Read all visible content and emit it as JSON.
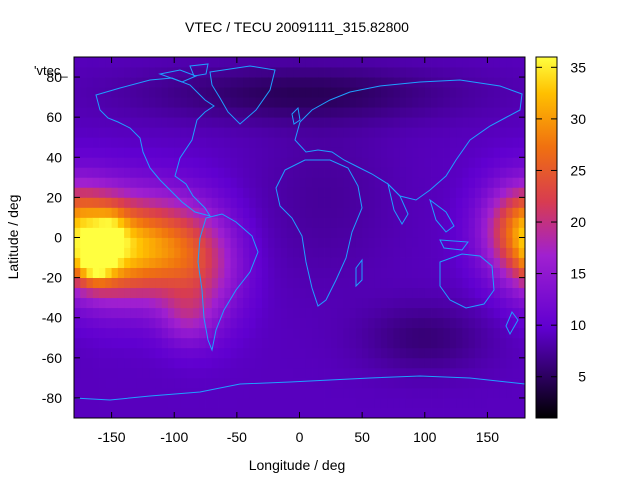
{
  "chart_data": {
    "type": "heatmap",
    "title": "VTEC / TECU 20091111_315.82800",
    "xlabel": "Longitude / deg",
    "ylabel": "Latitude / deg",
    "series_label": "'vtec_",
    "xlim": [
      -180,
      180
    ],
    "ylim": [
      -90,
      90
    ],
    "x_ticks": [
      -150,
      -100,
      -50,
      0,
      50,
      100,
      150
    ],
    "y_ticks": [
      -80,
      -60,
      -40,
      -20,
      0,
      20,
      40,
      60,
      80
    ],
    "colorbar": {
      "min": 1,
      "max": 36,
      "ticks": [
        5,
        10,
        15,
        20,
        25,
        30,
        35
      ]
    },
    "grid": false,
    "base_value": 9,
    "features": [
      {
        "lon": -150,
        "lat": -5,
        "value": 20.5,
        "spread_lon": 28,
        "spread_lat": 18
      },
      {
        "lon": -163,
        "lat": -12,
        "value": 11.5,
        "spread_lon": 10,
        "spread_lat": 7
      },
      {
        "lon": -150,
        "lat": 3,
        "value": 4,
        "spread_lon": 8,
        "spread_lat": 8
      },
      {
        "lon": -105,
        "lat": -5,
        "value": 12,
        "spread_lon": 25,
        "spread_lat": 18
      },
      {
        "lon": -75,
        "lat": -15,
        "value": 8,
        "spread_lon": 22,
        "spread_lat": 20
      },
      {
        "lon": -90,
        "lat": -40,
        "value": 5,
        "spread_lon": 15,
        "spread_lat": 10
      },
      {
        "lon": 178,
        "lat": 5,
        "value": 14,
        "spread_lon": 22,
        "spread_lat": 16
      },
      {
        "lon": 0,
        "lat": 72,
        "value": -4,
        "spread_lon": 90,
        "spread_lat": 10
      },
      {
        "lon": 20,
        "lat": 20,
        "value": -1.5,
        "spread_lon": 40,
        "spread_lat": 30
      },
      {
        "lon": 100,
        "lat": -50,
        "value": -3,
        "spread_lon": 35,
        "spread_lat": 12
      }
    ],
    "colormap": [
      {
        "v": 0.0,
        "color": "#000000"
      },
      {
        "v": 0.25,
        "color": "#6000d0"
      },
      {
        "v": 0.45,
        "color": "#a020d0"
      },
      {
        "v": 0.6,
        "color": "#d83c50"
      },
      {
        "v": 0.75,
        "color": "#f07010"
      },
      {
        "v": 0.9,
        "color": "#ffc000"
      },
      {
        "v": 1.0,
        "color": "#ffff40"
      }
    ],
    "coastline_color": "#1ea0ff"
  }
}
